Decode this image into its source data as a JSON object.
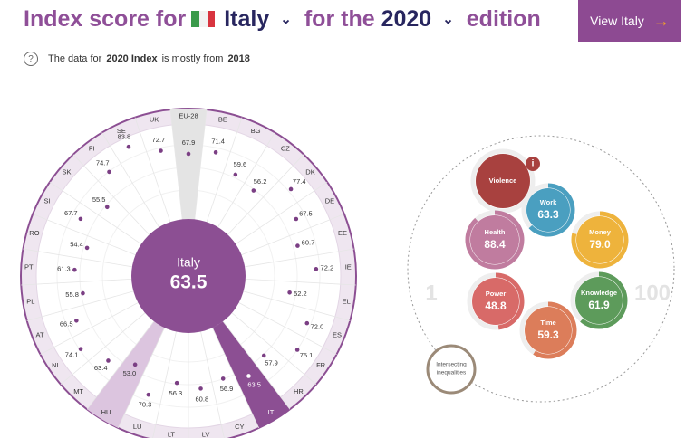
{
  "header": {
    "prefix": "Index score for",
    "country": "Italy",
    "middle": "for the",
    "year": "2020",
    "suffix": "edition",
    "button": "View Italy",
    "button_arrow": "→"
  },
  "note": {
    "icon": "?",
    "before": "The data for",
    "index": "2020 Index",
    "mid": "is mostly from",
    "data_year": "2018"
  },
  "chart_data": {
    "type": "radial",
    "center_label": "Italy",
    "center_value": 63.5,
    "categories": [
      "EU-28",
      "BE",
      "BG",
      "CZ",
      "DK",
      "DE",
      "EE",
      "IE",
      "EL",
      "ES",
      "FR",
      "HR",
      "IT",
      "CY",
      "LV",
      "LT",
      "LU",
      "HU",
      "MT",
      "NL",
      "AT",
      "PL",
      "PT",
      "RO",
      "SI",
      "SK",
      "FI",
      "SE",
      "UK"
    ],
    "values": [
      67.9,
      71.4,
      59.6,
      56.2,
      77.4,
      67.5,
      60.7,
      72.2,
      52.2,
      72,
      75.1,
      57.9,
      63.5,
      56.9,
      60.8,
      56.3,
      70.3,
      53,
      63.4,
      74.1,
      66.5,
      55.8,
      61.3,
      54.4,
      67.7,
      55.5,
      74.7,
      83.8,
      72.7
    ],
    "value_labels": [
      "67.9",
      "71.4",
      "59.6",
      "56.2",
      "77.4",
      "67.5",
      "60.7",
      "72.2",
      "52.2",
      "72.0",
      "75.1",
      "57.9",
      "63.5",
      "56.9",
      "60.8",
      "56.3",
      "70.3",
      "53.0",
      "63.4",
      "74.1",
      "66.5",
      "55.8",
      "61.3",
      "54.4",
      "67.7",
      "55.5",
      "74.7",
      "83.8",
      "72.7"
    ],
    "selected": "IT",
    "reference": "EU-28",
    "compare": "HU",
    "color": "#8c4f93"
  },
  "domains": {
    "scale_min": 1,
    "scale_max": 100,
    "info_icon": "i",
    "items": [
      {
        "name": "Violence",
        "value": null,
        "color": "#a8413f"
      },
      {
        "name": "Work",
        "value": 63.3,
        "value_label": "63.3",
        "color": "#4a9fc0"
      },
      {
        "name": "Money",
        "value": 79,
        "value_label": "79.0",
        "color": "#eeb33c"
      },
      {
        "name": "Health",
        "value": 88.4,
        "value_label": "88.4",
        "color": "#c07c9f"
      },
      {
        "name": "Knowledge",
        "value": 61.9,
        "value_label": "61.9",
        "color": "#5d9b5b"
      },
      {
        "name": "Power",
        "value": 48.8,
        "value_label": "48.8",
        "color": "#d86a68"
      },
      {
        "name": "Time",
        "value": 59.3,
        "value_label": "59.3",
        "color": "#dc7d5a"
      }
    ],
    "intersecting": [
      "Intersecting",
      "inequalities"
    ],
    "intersecting_color": "#9b8a78"
  }
}
